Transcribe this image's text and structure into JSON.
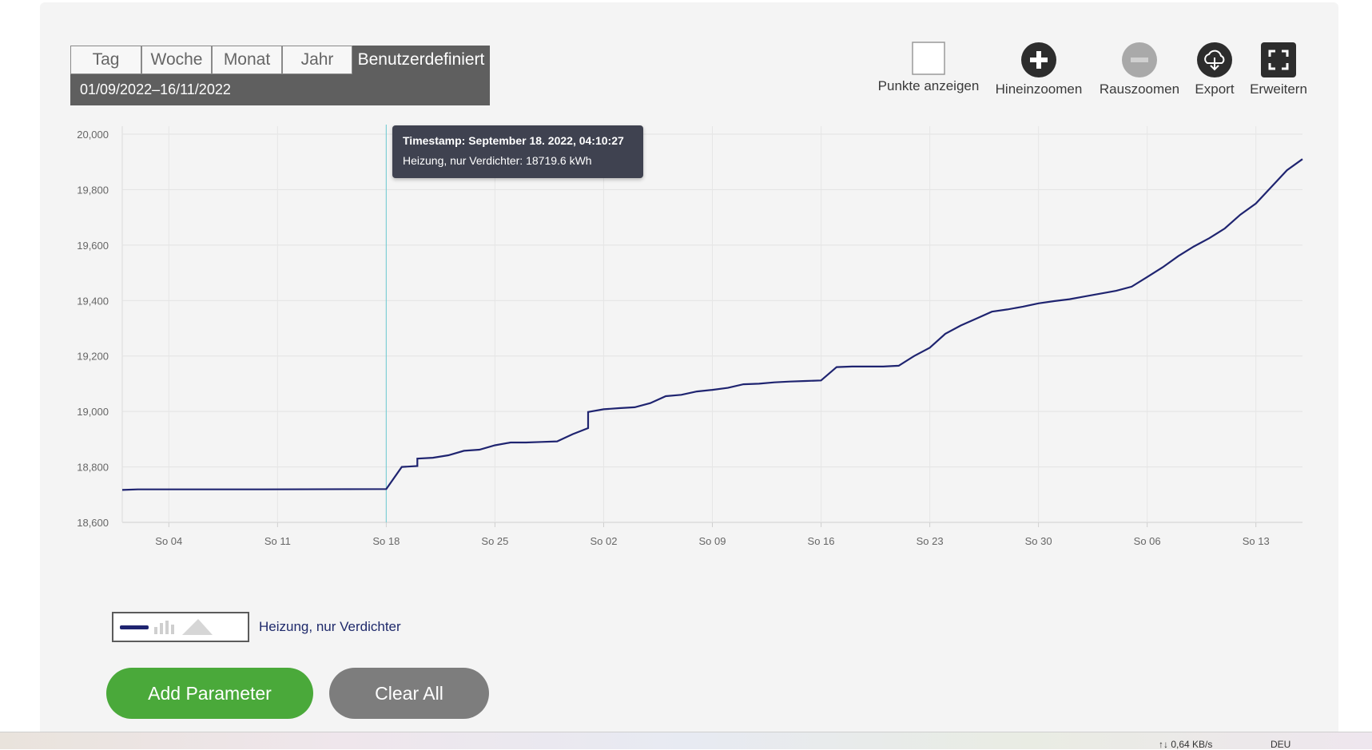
{
  "range_tabs": [
    "Tag",
    "Woche",
    "Monat",
    "Jahr",
    "Benutzerdefiniert"
  ],
  "active_tab": "Benutzerdefiniert",
  "date_range": "01/09/2022–16/11/2022",
  "toolbar": {
    "show_points": "Punkte anzeigen",
    "zoom_in": "Hineinzoomen",
    "zoom_out": "Rauszoomen",
    "export": "Export",
    "expand": "Erweitern"
  },
  "tooltip": {
    "line1": "Timestamp: September 18. 2022, 04:10:27",
    "line2": "Heizung, nur Verdichter: 18719.6 kWh"
  },
  "legend": {
    "label": "Heizung, nur Verdichter"
  },
  "buttons": {
    "add": "Add Parameter",
    "clear": "Clear All"
  },
  "taskbar": {
    "net": "↑↓ 0,64 KB/s",
    "lang": "DEU"
  },
  "colors": {
    "series": "#1f2470",
    "accent_green": "#4aa93a",
    "grey_button": "#7d7d7d",
    "cursor": "#7fcfd6"
  },
  "chart_data": {
    "type": "line",
    "title": "",
    "xlabel": "",
    "ylabel": "",
    "x_tick_labels": [
      "So 04",
      "So 11",
      "So 18",
      "So 25",
      "So 02",
      "So 09",
      "So 16",
      "So 23",
      "So 30",
      "So 06",
      "So 13"
    ],
    "x_tick_dates": [
      "2022-09-04",
      "2022-09-11",
      "2022-09-18",
      "2022-09-25",
      "2022-10-02",
      "2022-10-09",
      "2022-10-16",
      "2022-10-23",
      "2022-10-30",
      "2022-11-06",
      "2022-11-13"
    ],
    "xlim": [
      "2022-09-01",
      "2022-11-16"
    ],
    "ylim": [
      18600,
      20000
    ],
    "y_ticks": [
      18600,
      18800,
      19000,
      19200,
      19400,
      19600,
      19800,
      20000
    ],
    "y_tick_labels": [
      "18,600",
      "18,800",
      "19,000",
      "19,200",
      "19,400",
      "19,600",
      "19,800",
      "20,000"
    ],
    "grid": true,
    "cursor_x": "2022-09-18",
    "series": [
      {
        "name": "Heizung, nur Verdichter",
        "points": [
          [
            "2022-09-01",
            18717
          ],
          [
            "2022-09-02",
            18719
          ],
          [
            "2022-09-10",
            18719
          ],
          [
            "2022-09-18",
            18720
          ],
          [
            "2022-09-19",
            18800
          ],
          [
            "2022-09-20",
            18803
          ],
          [
            "2022-09-20",
            18830
          ],
          [
            "2022-09-21",
            18833
          ],
          [
            "2022-09-22",
            18842
          ],
          [
            "2022-09-23",
            18858
          ],
          [
            "2022-09-24",
            18862
          ],
          [
            "2022-09-25",
            18878
          ],
          [
            "2022-09-26",
            18888
          ],
          [
            "2022-09-27",
            18888
          ],
          [
            "2022-09-28",
            18890
          ],
          [
            "2022-09-29",
            18892
          ],
          [
            "2022-09-30",
            18918
          ],
          [
            "2022-10-01",
            18940
          ],
          [
            "2022-10-01",
            18998
          ],
          [
            "2022-10-02",
            19008
          ],
          [
            "2022-10-03",
            19012
          ],
          [
            "2022-10-04",
            19015
          ],
          [
            "2022-10-05",
            19030
          ],
          [
            "2022-10-06",
            19055
          ],
          [
            "2022-10-07",
            19060
          ],
          [
            "2022-10-08",
            19072
          ],
          [
            "2022-10-09",
            19078
          ],
          [
            "2022-10-10",
            19085
          ],
          [
            "2022-10-11",
            19098
          ],
          [
            "2022-10-12",
            19100
          ],
          [
            "2022-10-13",
            19105
          ],
          [
            "2022-10-14",
            19108
          ],
          [
            "2022-10-15",
            19110
          ],
          [
            "2022-10-16",
            19112
          ],
          [
            "2022-10-17",
            19160
          ],
          [
            "2022-10-18",
            19162
          ],
          [
            "2022-10-19",
            19162
          ],
          [
            "2022-10-20",
            19162
          ],
          [
            "2022-10-21",
            19165
          ],
          [
            "2022-10-22",
            19200
          ],
          [
            "2022-10-23",
            19230
          ],
          [
            "2022-10-24",
            19280
          ],
          [
            "2022-10-25",
            19310
          ],
          [
            "2022-10-26",
            19335
          ],
          [
            "2022-10-27",
            19360
          ],
          [
            "2022-10-28",
            19368
          ],
          [
            "2022-10-29",
            19378
          ],
          [
            "2022-10-30",
            19390
          ],
          [
            "2022-10-31",
            19398
          ],
          [
            "2022-11-01",
            19405
          ],
          [
            "2022-11-02",
            19415
          ],
          [
            "2022-11-03",
            19425
          ],
          [
            "2022-11-04",
            19435
          ],
          [
            "2022-11-05",
            19450
          ],
          [
            "2022-11-06",
            19485
          ],
          [
            "2022-11-07",
            19520
          ],
          [
            "2022-11-08",
            19560
          ],
          [
            "2022-11-09",
            19595
          ],
          [
            "2022-11-10",
            19625
          ],
          [
            "2022-11-11",
            19660
          ],
          [
            "2022-11-12",
            19710
          ],
          [
            "2022-11-13",
            19750
          ],
          [
            "2022-11-14",
            19810
          ],
          [
            "2022-11-15",
            19870
          ],
          [
            "2022-11-16",
            19910
          ]
        ]
      }
    ]
  }
}
